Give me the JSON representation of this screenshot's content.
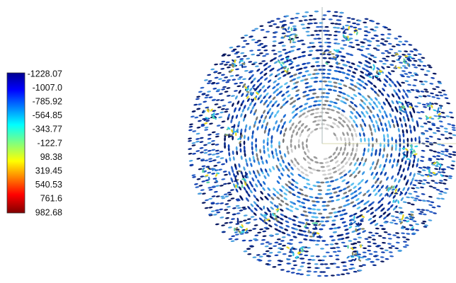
{
  "legend": {
    "labels": [
      "-1228.07",
      "-1007.0",
      "-785.92",
      "-564.85",
      "-343.77",
      "-122.7",
      "98.38",
      "319.45",
      "540.53",
      "761.6",
      "982.68"
    ]
  }
}
